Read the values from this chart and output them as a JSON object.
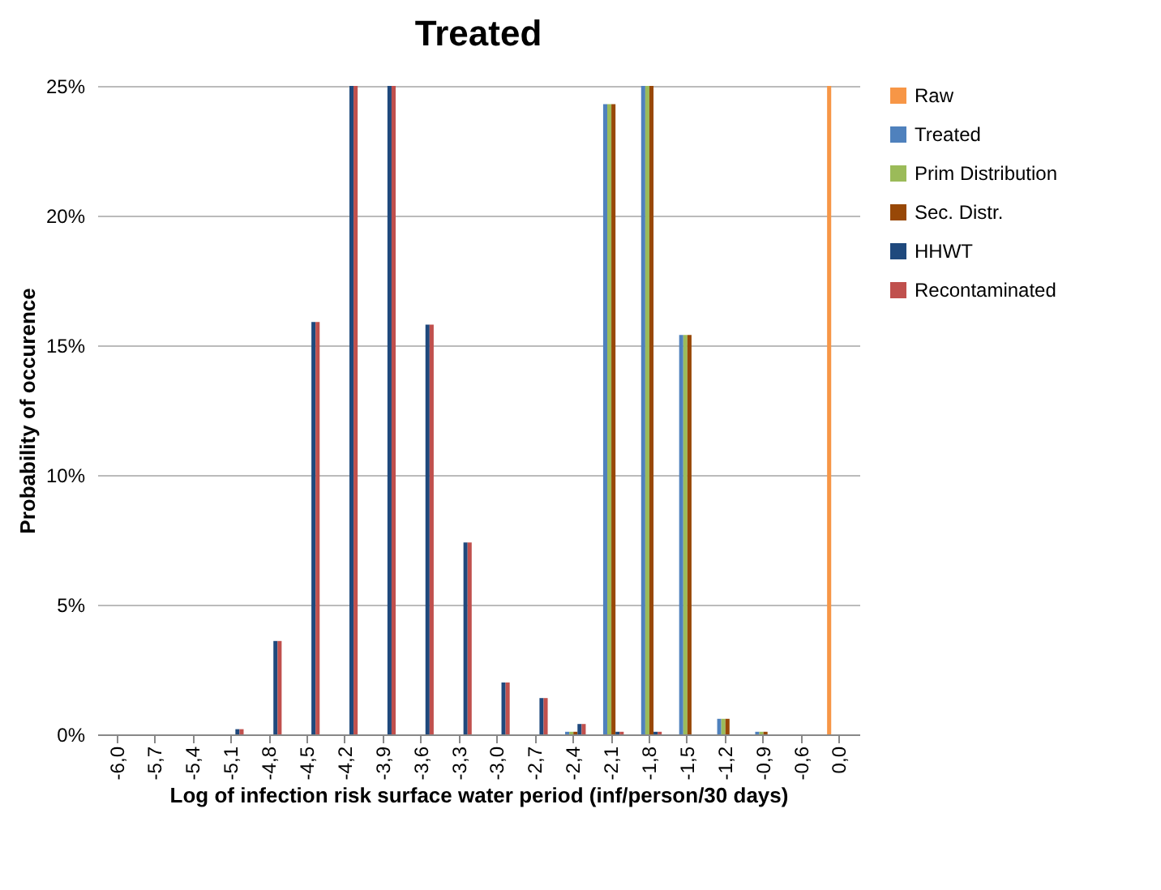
{
  "chart_data": {
    "type": "bar",
    "title": "Treated",
    "xlabel": "Log of infection risk surface water period (inf/person/30 days)",
    "ylabel": "Probability of occurence",
    "categories": [
      "-6,0",
      "-5,7",
      "-5,4",
      "-5,1",
      "-4,8",
      "-4,5",
      "-4,2",
      "-3,9",
      "-3,6",
      "-3,3",
      "-3,0",
      "-2,7",
      "-2,4",
      "-2,1",
      "-1,8",
      "-1,5",
      "-1,2",
      "-0,9",
      "-0,6",
      "0,0"
    ],
    "series": [
      {
        "name": "Raw",
        "color": "#f79646",
        "values": [
          null,
          null,
          null,
          null,
          null,
          null,
          null,
          null,
          null,
          null,
          null,
          null,
          null,
          null,
          null,
          null,
          null,
          null,
          null,
          25
        ]
      },
      {
        "name": "Treated",
        "color": "#4f81bd",
        "values": [
          null,
          null,
          null,
          null,
          null,
          null,
          null,
          null,
          null,
          null,
          null,
          null,
          0.1,
          24.3,
          25,
          15.4,
          0.6,
          0.1,
          null,
          null
        ]
      },
      {
        "name": "Prim Distribution",
        "color": "#9bbb59",
        "values": [
          null,
          null,
          null,
          null,
          null,
          null,
          null,
          null,
          null,
          null,
          null,
          null,
          0.1,
          24.3,
          25,
          15.4,
          0.6,
          0.1,
          null,
          null
        ]
      },
      {
        "name": "Sec. Distr.",
        "color": "#984807",
        "values": [
          null,
          null,
          null,
          null,
          null,
          null,
          null,
          null,
          null,
          null,
          null,
          null,
          0.1,
          24.3,
          25,
          15.4,
          0.6,
          0.1,
          null,
          null
        ]
      },
      {
        "name": "HHWT",
        "color": "#1f497d",
        "values": [
          null,
          null,
          null,
          0.2,
          3.6,
          15.9,
          25,
          25,
          15.8,
          7.4,
          2.0,
          1.4,
          0.4,
          0.1,
          0.1,
          null,
          null,
          null,
          null,
          null
        ]
      },
      {
        "name": "Recontaminated",
        "color": "#c0504d",
        "values": [
          null,
          null,
          null,
          0.2,
          3.6,
          15.9,
          25,
          25,
          15.8,
          7.4,
          2.0,
          1.4,
          0.4,
          0.1,
          0.1,
          null,
          null,
          null,
          null,
          null
        ]
      }
    ],
    "ylim": [
      0,
      25
    ],
    "yticks": [
      {
        "value": 0,
        "label": "0%"
      },
      {
        "value": 5,
        "label": "5%"
      },
      {
        "value": 10,
        "label": "10%"
      },
      {
        "value": 15,
        "label": "15%"
      },
      {
        "value": 20,
        "label": "20%"
      },
      {
        "value": 25,
        "label": "25%"
      }
    ],
    "grid": "y",
    "legend": "right"
  }
}
